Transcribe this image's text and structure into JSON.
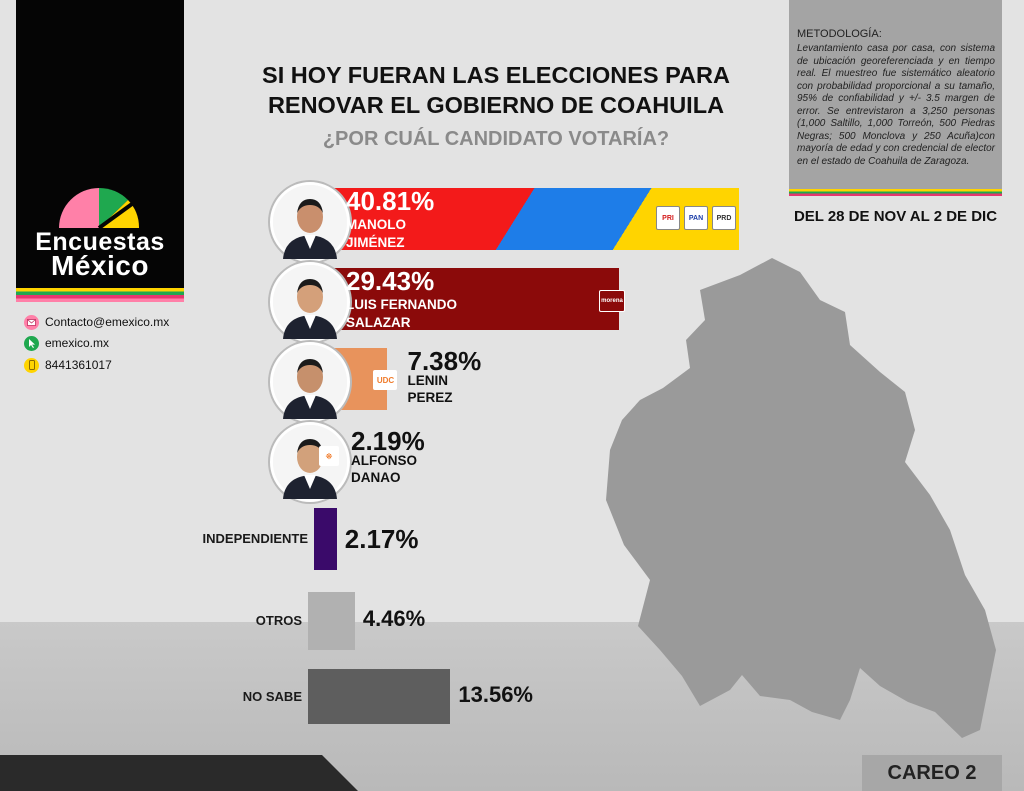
{
  "header": {
    "title_line1": "SI HOY FUERAN LAS ELECCIONES PARA",
    "title_line2": "RENOVAR EL GOBIERNO DE COAHUILA",
    "subtitle": "¿POR CUÁL CANDIDATO VOTARÍA?"
  },
  "brand": {
    "name_line1": "Encuestas",
    "name_line2": "México",
    "email": "Contacto@emexico.mx",
    "website": "emexico.mx",
    "phone": "8441361017",
    "colors": {
      "yellow": "#ffd400",
      "green": "#1fa84f",
      "pink": "#e6366f",
      "light_pink": "#ff80a8"
    }
  },
  "methodology": {
    "title": "METODOLOGÍA:",
    "text": "Levantamiento casa por casa, con sistema de ubicación georeferenciada y en tiempo real. El muestreo fue sistemático aleatorio con probabilidad proporcional a su tamaño, 95% de confiabilidad y +/- 3.5 margen de error. Se entrevistaron a 3,250 personas (1,000 Saltillo, 1,000 Torreón, 500 Piedras Negras; 500 Monclova y 250 Acuña)con mayoría de edad y con credencial de elector en el estado de Coahuila de Zaragoza.",
    "date_range": "DEL 28 DE NOV AL 2 DE DIC"
  },
  "footer": {
    "careo": "CAREO 2"
  },
  "icons": {
    "email": "email-icon",
    "web": "cursor-icon",
    "phone": "phone-icon",
    "photo": "avatar-icon",
    "map": "coahuila-map-icon"
  },
  "chart_data": {
    "type": "bar",
    "orientation": "horizontal",
    "categories": [
      "MANOLO JIMÉNEZ",
      "LUIS FERNANDO SALAZAR",
      "LENIN PEREZ",
      "ALFONSO DANAO",
      "INDEPENDIENTE",
      "OTROS",
      "NO SABE"
    ],
    "values": [
      40.81,
      29.43,
      7.38,
      2.19,
      2.17,
      4.46,
      13.56
    ],
    "labels": [
      "40.81%",
      "29.43%",
      "7.38%",
      "2.19%",
      "2.17%",
      "4.46%",
      "13.56%"
    ],
    "name_lines": [
      [
        "MANOLO",
        "JIMÉNEZ"
      ],
      [
        "LUIS FERNANDO",
        "SALAZAR"
      ],
      [
        "LENIN",
        "PEREZ"
      ],
      [
        "ALFONSO",
        "DANAO"
      ],
      [
        "INDEPENDIENTE"
      ],
      [
        "OTROS"
      ],
      [
        "NO SABE"
      ]
    ],
    "party_logos": [
      [
        "PRI",
        "PAN",
        "PRD"
      ],
      [
        "morena"
      ],
      [
        "UDC"
      ],
      [
        "MC"
      ],
      [],
      [],
      []
    ],
    "colors": [
      "#f31a1a",
      "#8b0a0a",
      "#e8935c",
      "#f07c2c",
      "#3a0a6a",
      "#b1b1b1",
      "#5e5e5e"
    ],
    "coalition_colors": [
      "#f31a1a",
      "#1e7de8",
      "#ffd400"
    ],
    "value_unit": "%"
  }
}
